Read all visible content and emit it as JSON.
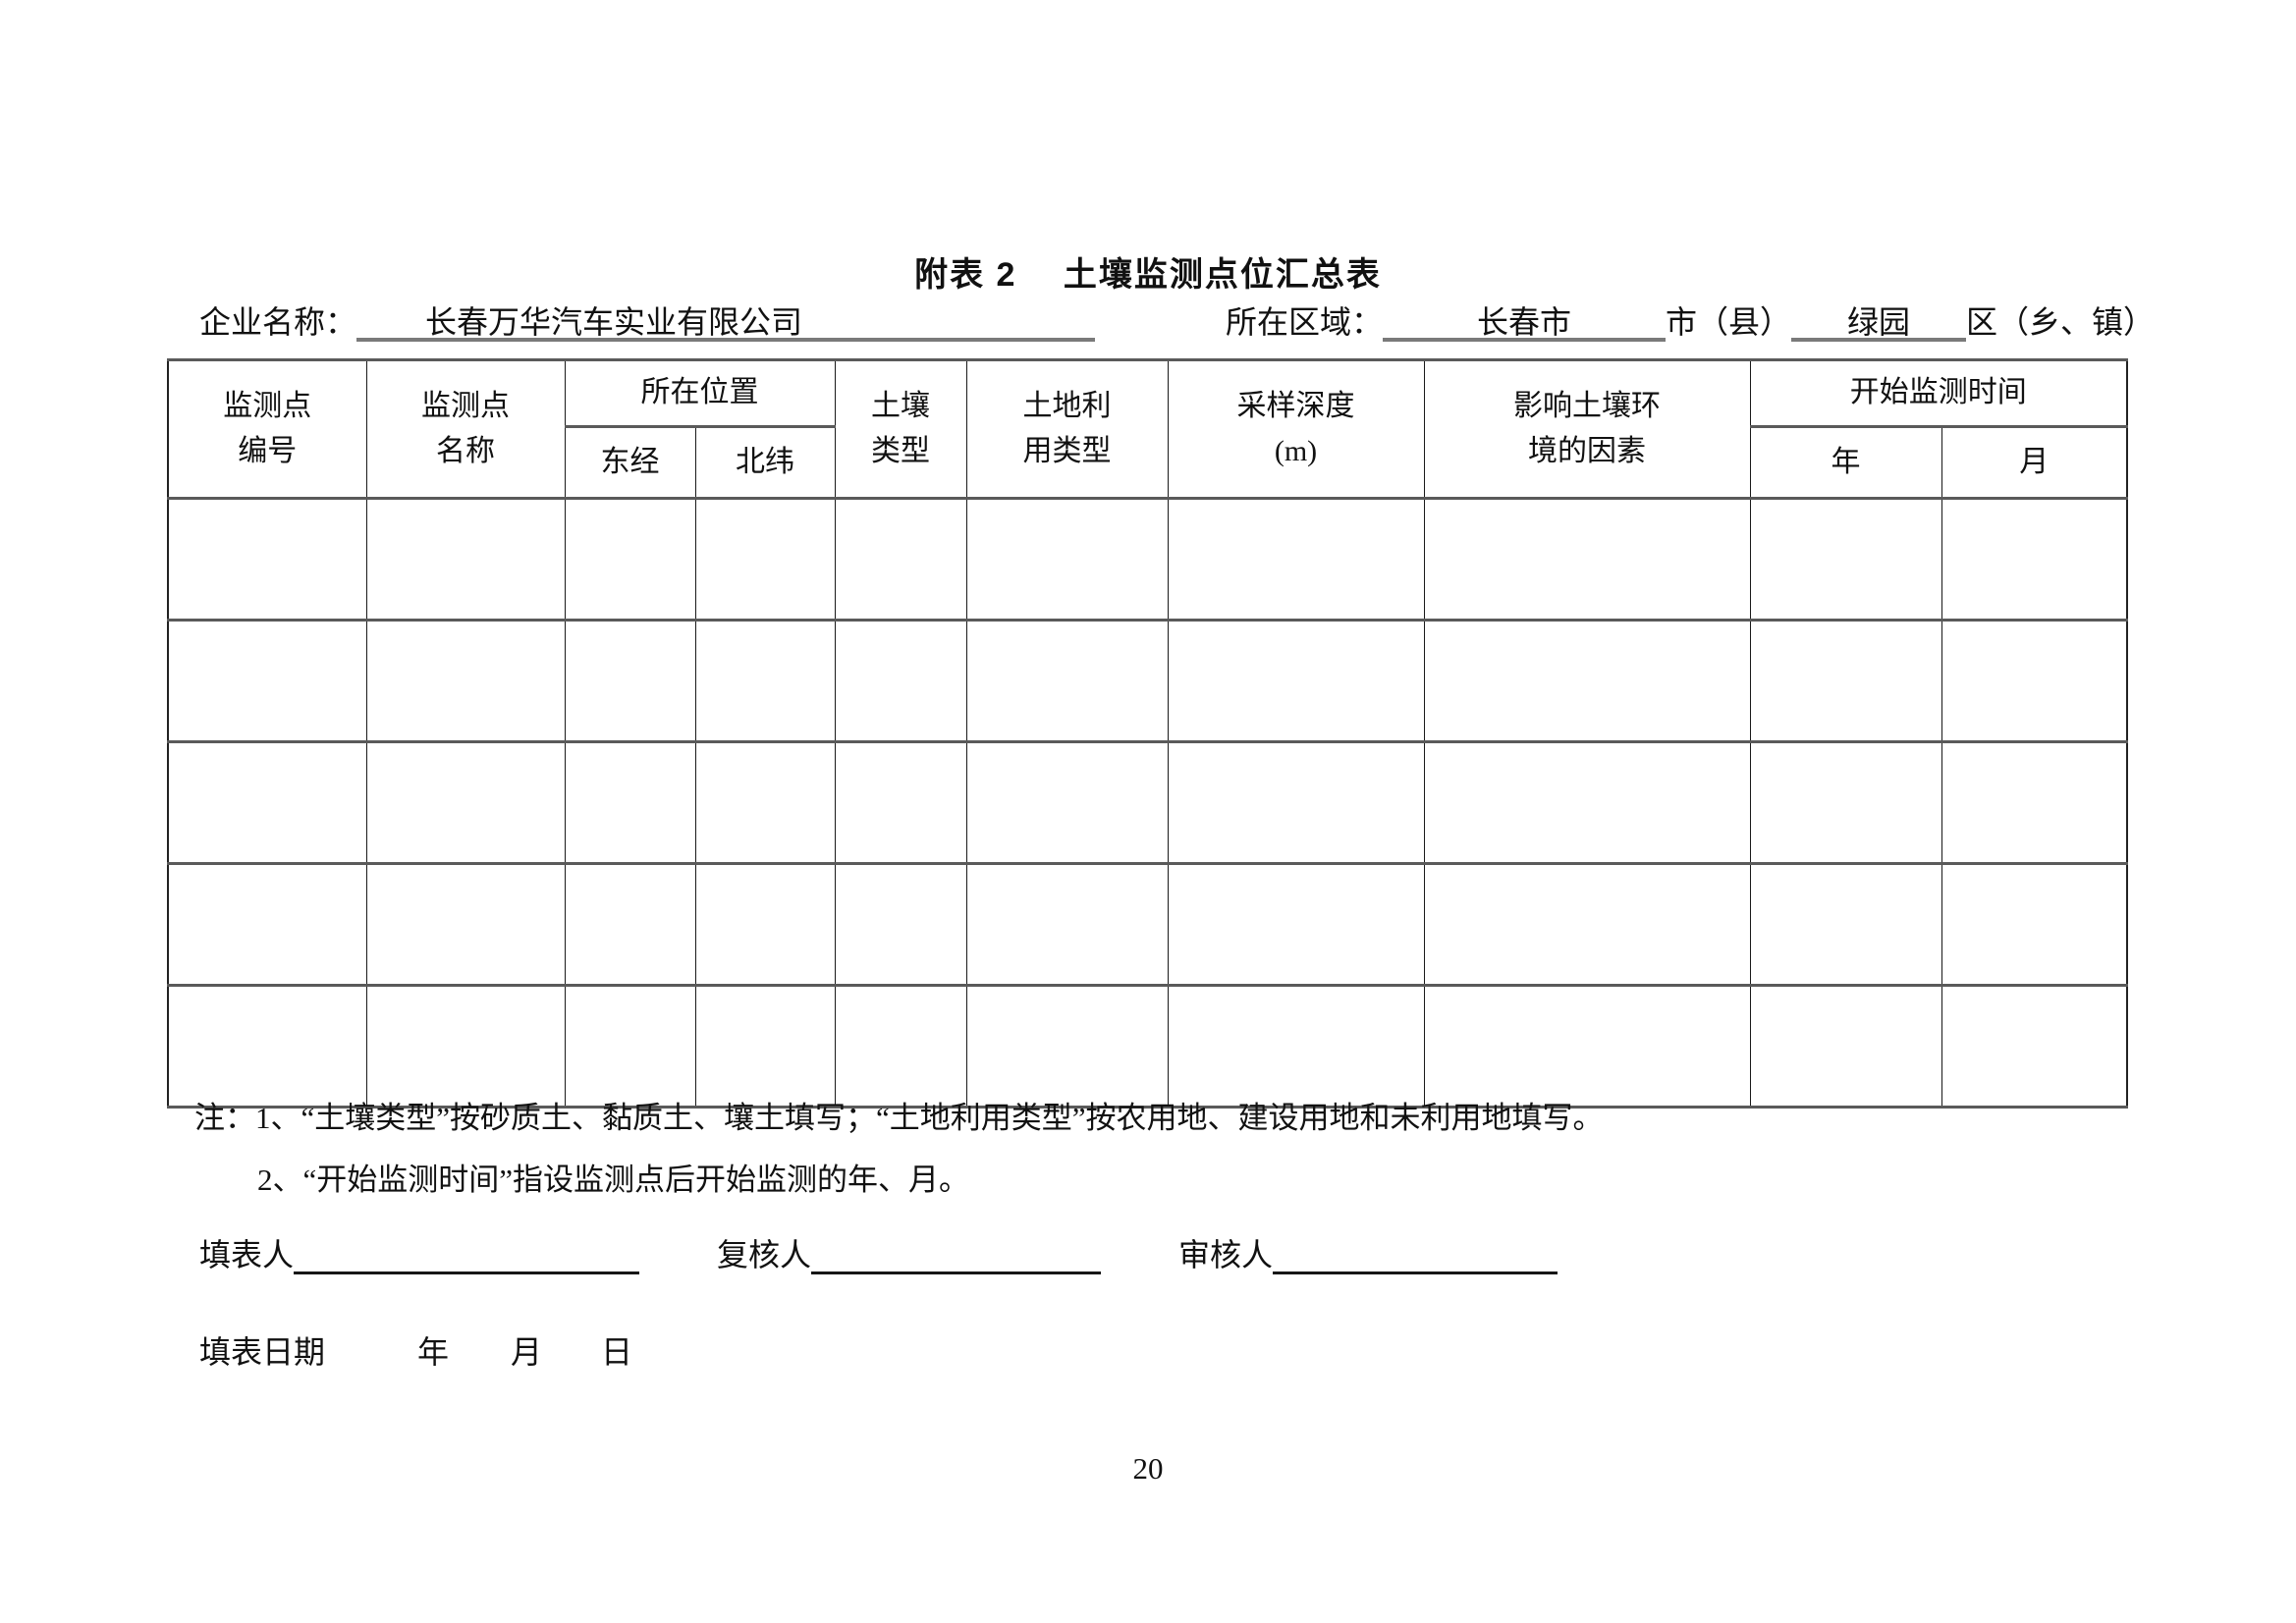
{
  "title": "附表 2　 土壤监测点位汇总表",
  "info": {
    "company_label": "企业名称：",
    "company_value": "长春万华汽车实业有限公司",
    "region_label": "所在区域：",
    "region_city": "长春市",
    "region_city_suffix": "市（县）",
    "region_district": "绿园",
    "region_district_suffix": "区（乡、镇）"
  },
  "table": {
    "headers": {
      "point_id": "监测点\n编号",
      "point_name": "监测点\n名称",
      "location": "所在位置",
      "longitude": "东经",
      "latitude": "北纬",
      "soil_type": "土壤\n类型",
      "land_use": "土地利\n用类型",
      "sample_depth": "采样深度\n(m)",
      "env_factors": "影响土壤环\n境的因素",
      "start_time": "开始监测时间",
      "year": "年",
      "month": "月"
    },
    "rows": [
      [
        "",
        "",
        "",
        "",
        "",
        "",
        "",
        "",
        "",
        ""
      ],
      [
        "",
        "",
        "",
        "",
        "",
        "",
        "",
        "",
        "",
        ""
      ],
      [
        "",
        "",
        "",
        "",
        "",
        "",
        "",
        "",
        "",
        ""
      ],
      [
        "",
        "",
        "",
        "",
        "",
        "",
        "",
        "",
        "",
        ""
      ],
      [
        "",
        "",
        "",
        "",
        "",
        "",
        "",
        "",
        "",
        ""
      ]
    ]
  },
  "notes": {
    "line1": "注：1、“土壤类型”按砂质土、黏质土、壤土填写；“土地利用类型”按农用地、建设用地和未利用地填写。",
    "line2": "2、“开始监测时间”指设监测点后开始监测的年、月。"
  },
  "signoff": {
    "filler_label": "填表人",
    "filler_value": "",
    "reviewer_label": "复核人",
    "reviewer_value": "",
    "auditor_label": "审核人",
    "auditor_value": ""
  },
  "date_line": {
    "label": "填表日期",
    "year": "年",
    "month": "月",
    "day": "日"
  },
  "page": {
    "number": "20"
  }
}
